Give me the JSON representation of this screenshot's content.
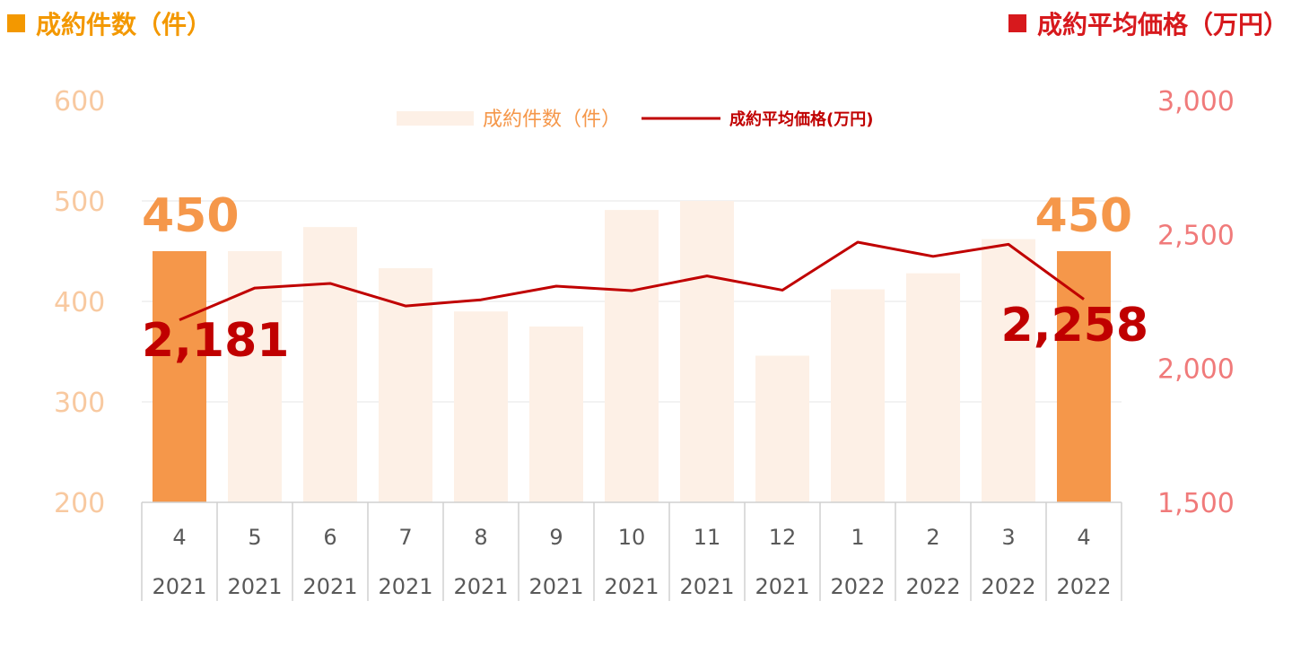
{
  "titles": {
    "left": "成約件数（件）",
    "right": "成約平均価格（万円）"
  },
  "colors": {
    "bar_highlight": "#f5974a",
    "bar_normal": "#fdf0e6",
    "line": "#c00000",
    "left_axis": "#f8c9a0",
    "right_axis": "#f07a7a",
    "title_left": "#f39800",
    "title_right": "#d7191d"
  },
  "chart_data": {
    "type": "bar",
    "categories": [
      {
        "month": "4",
        "year": "2021"
      },
      {
        "month": "5",
        "year": "2021"
      },
      {
        "month": "6",
        "year": "2021"
      },
      {
        "month": "7",
        "year": "2021"
      },
      {
        "month": "8",
        "year": "2021"
      },
      {
        "month": "9",
        "year": "2021"
      },
      {
        "month": "10",
        "year": "2021"
      },
      {
        "month": "11",
        "year": "2021"
      },
      {
        "month": "12",
        "year": "2021"
      },
      {
        "month": "1",
        "year": "2022"
      },
      {
        "month": "2",
        "year": "2022"
      },
      {
        "month": "3",
        "year": "2022"
      },
      {
        "month": "4",
        "year": "2022"
      }
    ],
    "series": [
      {
        "name": "成約件数（件）",
        "type": "bar",
        "axis": "left",
        "values": [
          450,
          450,
          474,
          433,
          390,
          375,
          491,
          500,
          346,
          412,
          428,
          462,
          450
        ],
        "highlight": [
          0,
          12
        ]
      },
      {
        "name": "成約平均価格(万円)",
        "type": "line",
        "axis": "right",
        "values": [
          2181,
          2300,
          2317,
          2233,
          2256,
          2307,
          2290,
          2345,
          2292,
          2471,
          2418,
          2463,
          2258
        ]
      }
    ],
    "left_axis": {
      "ticks": [
        "600",
        "500",
        "400",
        "300",
        "200"
      ],
      "range": [
        200,
        600
      ]
    },
    "right_axis": {
      "ticks": [
        "3,000",
        "2,500",
        "2,000",
        "1,500"
      ],
      "range": [
        1500,
        3000
      ]
    },
    "annotations": {
      "bar_first": "450",
      "bar_last": "450",
      "line_first": "2,181",
      "line_last": "2,258"
    },
    "legend_position": "top-center",
    "grid": true
  }
}
